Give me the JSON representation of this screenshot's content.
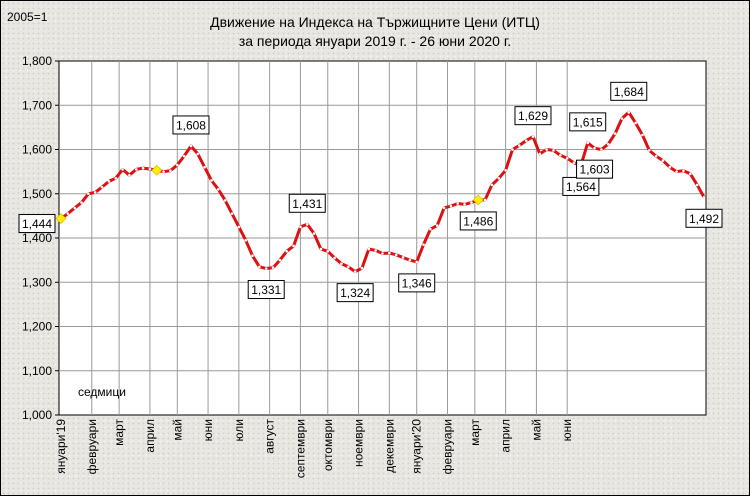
{
  "chart_data": {
    "type": "line",
    "title": "Движение на Индекса на Тържищните Цени (ИТЦ)",
    "subtitle": "за периода януари 2019 г. - 26 юни 2020 г.",
    "unit_label": "2005=1",
    "xlabel": "седмици",
    "ylabel": "",
    "ylim": [
      1.0,
      1.8
    ],
    "y_ticks": [
      "1,000",
      "1,100",
      "1,200",
      "1,300",
      "1,400",
      "1,500",
      "1,600",
      "1,700",
      "1,800"
    ],
    "x_ticks": [
      {
        "label": "януари'19",
        "week": 0
      },
      {
        "label": "февруари",
        "week": 4.5
      },
      {
        "label": "март",
        "week": 8.5
      },
      {
        "label": "април",
        "week": 13
      },
      {
        "label": "май",
        "week": 17
      },
      {
        "label": "юни",
        "week": 21.5
      },
      {
        "label": "юли",
        "week": 26
      },
      {
        "label": "август",
        "week": 30.5
      },
      {
        "label": "септември",
        "week": 35
      },
      {
        "label": "октомври",
        "week": 39
      },
      {
        "label": "ноември",
        "week": 43.5
      },
      {
        "label": "декември",
        "week": 48
      },
      {
        "label": "януари'20",
        "week": 52
      },
      {
        "label": "февруари",
        "week": 56.5
      },
      {
        "label": "март",
        "week": 60.5
      },
      {
        "label": "април",
        "week": 65
      },
      {
        "label": "май",
        "week": 69.5
      },
      {
        "label": "юни",
        "week": 74
      }
    ],
    "grid": true,
    "series": [
      {
        "color": "#dd1111",
        "values": [
          1.444,
          1.455,
          1.468,
          1.48,
          1.5,
          1.503,
          1.515,
          1.528,
          1.535,
          1.555,
          1.542,
          1.555,
          1.558,
          1.556,
          1.553,
          1.55,
          1.552,
          1.565,
          1.585,
          1.608,
          1.59,
          1.56,
          1.53,
          1.51,
          1.485,
          1.455,
          1.425,
          1.395,
          1.36,
          1.335,
          1.331,
          1.333,
          1.35,
          1.37,
          1.382,
          1.425,
          1.431,
          1.41,
          1.375,
          1.37,
          1.355,
          1.342,
          1.335,
          1.324,
          1.332,
          1.375,
          1.372,
          1.365,
          1.366,
          1.362,
          1.356,
          1.35,
          1.346,
          1.385,
          1.42,
          1.428,
          1.468,
          1.472,
          1.478,
          1.476,
          1.48,
          1.486,
          1.486,
          1.52,
          1.535,
          1.553,
          1.6,
          1.609,
          1.62,
          1.629,
          1.59,
          1.6,
          1.598,
          1.587,
          1.58,
          1.57,
          1.564,
          1.615,
          1.603,
          1.6,
          1.612,
          1.636,
          1.67,
          1.684,
          1.66,
          1.633,
          1.598,
          1.585,
          1.575,
          1.56,
          1.55,
          1.552,
          1.545,
          1.52,
          1.492
        ]
      }
    ],
    "markers": [
      0,
      14,
      61
    ],
    "annotations": [
      {
        "label": "1,444",
        "index": 0,
        "pos": "left"
      },
      {
        "label": "1,608",
        "index": 19,
        "pos": "above"
      },
      {
        "label": "1,331",
        "index": 30,
        "pos": "below"
      },
      {
        "label": "1,431",
        "index": 36,
        "pos": "above"
      },
      {
        "label": "1,324",
        "index": 43,
        "pos": "below"
      },
      {
        "label": "1,346",
        "index": 52,
        "pos": "below"
      },
      {
        "label": "1,486",
        "index": 61,
        "pos": "below"
      },
      {
        "label": "1,629",
        "index": 69,
        "pos": "above"
      },
      {
        "label": "1,615",
        "index": 77,
        "pos": "above"
      },
      {
        "label": "1,564",
        "index": 76,
        "pos": "below"
      },
      {
        "label": "1,603",
        "index": 78,
        "pos": "below"
      },
      {
        "label": "1,684",
        "index": 83,
        "pos": "above"
      },
      {
        "label": "1,492",
        "index": 94,
        "pos": "below"
      }
    ]
  }
}
